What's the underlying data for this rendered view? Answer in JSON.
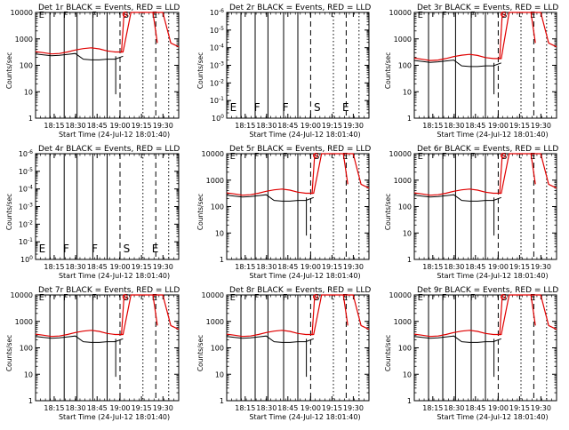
{
  "figure": {
    "background": "#ffffff",
    "event_color": "#000000",
    "lld_color": "#e00000"
  },
  "chart_data": [
    {
      "id": "det1",
      "title": "Det 1r BLACK = Events, RED = LLD",
      "xlabel": "Start Time (24-Jul-12 18:01:40)",
      "ylabel": "Counts/sec",
      "type": "line",
      "yscale": "log",
      "ylim": [
        1,
        10000
      ],
      "yticks": [
        "1",
        "10",
        "100",
        "1000",
        "10000"
      ],
      "xticks": [
        "18:15",
        "18:30",
        "18:45",
        "19:00",
        "19:15",
        "19:30"
      ],
      "markers": [
        "E",
        "F",
        "F",
        "S",
        "E"
      ],
      "has_data": true,
      "series": [
        {
          "name": "Events",
          "values_desc": "black"
        },
        {
          "name": "LLD",
          "values_desc": "red"
        }
      ]
    },
    {
      "id": "det2",
      "title": "Det 2r BLACK = Events, RED = LLD",
      "xlabel": "Start Time (24-Jul-12 18:01:40)",
      "ylabel": "Counts/sec",
      "type": "line",
      "yscale": "log",
      "ylim": [
        1,
        1e-06
      ],
      "yticks": [
        "10^0",
        "10^-1",
        "10^-2",
        "10^-3",
        "10^-4",
        "10^-5",
        "10^-6"
      ],
      "xticks": [
        "18:15",
        "18:30",
        "18:45",
        "19:00",
        "19:15",
        "19:30"
      ],
      "markers": [
        "E",
        "F",
        "F",
        "S",
        "E"
      ],
      "has_data": false,
      "series": []
    },
    {
      "id": "det3",
      "title": "Det 3r BLACK = Events, RED = LLD",
      "xlabel": "Start Time (24-Jul-12 18:01:40)",
      "ylabel": "Counts/sec",
      "type": "line",
      "yscale": "log",
      "ylim": [
        1,
        10000
      ],
      "yticks": [
        "1",
        "10",
        "100",
        "1000",
        "10000"
      ],
      "xticks": [
        "18:15",
        "18:30",
        "18:45",
        "19:00",
        "19:15",
        "19:30"
      ],
      "markers": [
        "E",
        "F",
        "F",
        "S",
        "E"
      ],
      "has_data": true,
      "variant": "det3",
      "series": [
        {
          "name": "Events",
          "values_desc": "black"
        },
        {
          "name": "LLD",
          "values_desc": "red"
        }
      ]
    },
    {
      "id": "det4",
      "title": "Det 4r BLACK = Events, RED = LLD",
      "xlabel": "Start Time (24-Jul-12 18:01:40)",
      "ylabel": "Counts/sec",
      "type": "line",
      "yscale": "log",
      "ylim": [
        1,
        1e-06
      ],
      "yticks": [
        "10^0",
        "10^-1",
        "10^-2",
        "10^-3",
        "10^-4",
        "10^-5",
        "10^-6"
      ],
      "xticks": [
        "18:15",
        "18:30",
        "18:45",
        "19:00",
        "19:15",
        "19:30"
      ],
      "markers": [
        "E",
        "F",
        "F",
        "S",
        "E"
      ],
      "has_data": false,
      "series": []
    },
    {
      "id": "det5",
      "title": "Det 5r BLACK = Events, RED = LLD",
      "xlabel": "Start Time (24-Jul-12 18:01:40)",
      "ylabel": "Counts/sec",
      "type": "line",
      "yscale": "log",
      "ylim": [
        1,
        10000
      ],
      "yticks": [
        "1",
        "10",
        "100",
        "1000",
        "10000"
      ],
      "xticks": [
        "18:15",
        "18:30",
        "18:45",
        "19:00",
        "19:15",
        "19:30"
      ],
      "markers": [
        "E",
        "F",
        "F",
        "S",
        "E"
      ],
      "has_data": true,
      "series": [
        {
          "name": "Events",
          "values_desc": "black"
        },
        {
          "name": "LLD",
          "values_desc": "red"
        }
      ]
    },
    {
      "id": "det6",
      "title": "Det 6r BLACK = Events, RED = LLD",
      "xlabel": "Start Time (24-Jul-12 18:01:40)",
      "ylabel": "Counts/sec",
      "type": "line",
      "yscale": "log",
      "ylim": [
        1,
        10000
      ],
      "yticks": [
        "1",
        "10",
        "100",
        "1000",
        "10000"
      ],
      "xticks": [
        "18:15",
        "18:30",
        "18:45",
        "19:00",
        "19:15",
        "19:30"
      ],
      "markers": [
        "E",
        "F",
        "F",
        "S",
        "E"
      ],
      "has_data": true,
      "series": [
        {
          "name": "Events",
          "values_desc": "black"
        },
        {
          "name": "LLD",
          "values_desc": "red"
        }
      ]
    },
    {
      "id": "det7",
      "title": "Det 7r BLACK = Events, RED = LLD",
      "xlabel": "Start Time (24-Jul-12 18:01:40)",
      "ylabel": "Counts/sec",
      "type": "line",
      "yscale": "log",
      "ylim": [
        1,
        10000
      ],
      "yticks": [
        "1",
        "10",
        "100",
        "1000",
        "10000"
      ],
      "xticks": [
        "18:15",
        "18:30",
        "18:45",
        "19:00",
        "19:15",
        "19:30"
      ],
      "markers": [
        "E",
        "F",
        "F",
        "S",
        "E"
      ],
      "has_data": true,
      "series": [
        {
          "name": "Events",
          "values_desc": "black"
        },
        {
          "name": "LLD",
          "values_desc": "red"
        }
      ]
    },
    {
      "id": "det8",
      "title": "Det 8r BLACK = Events, RED = LLD",
      "xlabel": "Start Time (24-Jul-12 18:01:40)",
      "ylabel": "Counts/sec",
      "type": "line",
      "yscale": "log",
      "ylim": [
        1,
        10000
      ],
      "yticks": [
        "1",
        "10",
        "100",
        "1000",
        "10000"
      ],
      "xticks": [
        "18:15",
        "18:30",
        "18:45",
        "19:00",
        "19:15",
        "19:30"
      ],
      "markers": [
        "E",
        "F",
        "F",
        "S",
        "E"
      ],
      "has_data": true,
      "series": [
        {
          "name": "Events",
          "values_desc": "black"
        },
        {
          "name": "LLD",
          "values_desc": "red"
        }
      ]
    },
    {
      "id": "det9",
      "title": "Det 9r BLACK = Events, RED = LLD",
      "xlabel": "Start Time (24-Jul-12 18:01:40)",
      "ylabel": "Counts/sec",
      "type": "line",
      "yscale": "log",
      "ylim": [
        1,
        10000
      ],
      "yticks": [
        "1",
        "10",
        "100",
        "1000",
        "10000"
      ],
      "xticks": [
        "18:15",
        "18:30",
        "18:45",
        "19:00",
        "19:15",
        "19:30"
      ],
      "markers": [
        "E",
        "F",
        "F",
        "S",
        "E"
      ],
      "has_data": true,
      "series": [
        {
          "name": "Events",
          "values_desc": "black"
        },
        {
          "name": "LLD",
          "values_desc": "red"
        }
      ]
    }
  ],
  "traces": {
    "time_axis": [
      "18:05",
      "18:10",
      "18:15",
      "18:20",
      "18:25",
      "18:30",
      "18:35",
      "18:40",
      "18:45",
      "18:50",
      "18:55",
      "19:00",
      "19:05",
      "19:10",
      "19:15",
      "19:20",
      "19:25",
      "19:30",
      "19:35"
    ],
    "lld_counts": [
      330,
      300,
      270,
      280,
      320,
      380,
      430,
      460,
      420,
      350,
      320,
      320,
      10000,
      10000,
      10000,
      10000,
      10000,
      700,
      500
    ],
    "event_counts": [
      270,
      250,
      230,
      240,
      260,
      280,
      170,
      160,
      160,
      170,
      170,
      220,
      null,
      null,
      null,
      null,
      null,
      null,
      null
    ]
  }
}
